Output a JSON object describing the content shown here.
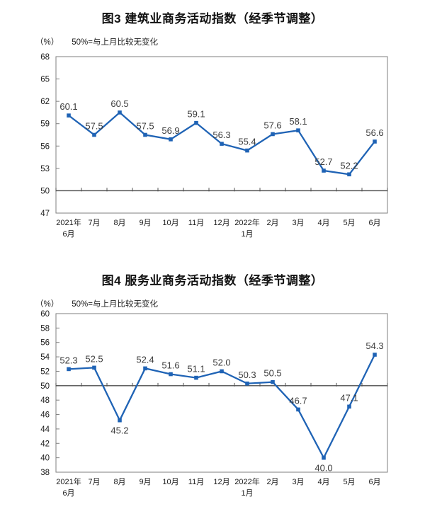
{
  "chart_data": [
    {
      "type": "line",
      "title": "图3 建筑业商务活动指数（经季节调整）",
      "unit_label": "（%）",
      "subtitle": "50%=与上月比较无变化",
      "categories": [
        [
          "2021年",
          "6月"
        ],
        [
          "7月"
        ],
        [
          "8月"
        ],
        [
          "9月"
        ],
        [
          "10月"
        ],
        [
          "11月"
        ],
        [
          "12月"
        ],
        [
          "2022年",
          "1月"
        ],
        [
          "2月"
        ],
        [
          "3月"
        ],
        [
          "4月"
        ],
        [
          "5月"
        ],
        [
          "6月"
        ]
      ],
      "values": [
        60.1,
        57.5,
        60.5,
        57.5,
        56.9,
        59.1,
        56.3,
        55.4,
        57.6,
        58.1,
        52.7,
        52.2,
        56.6
      ],
      "ylim": [
        47,
        68
      ],
      "ytick_step": 3,
      "reference_line": 50,
      "label_below_indices": [],
      "legend": "none",
      "grid": "off",
      "line_color": "#1f63b5",
      "marker": "square",
      "label_color": "#3d3d3d",
      "axis_color": "#7f7f7f",
      "reference_line_color": "#4d4d4d",
      "tick_text_color": "#1a1a1a"
    },
    {
      "type": "line",
      "title": "图4 服务业商务活动指数（经季节调整）",
      "unit_label": "（%）",
      "subtitle": "50%=与上月比较无变化",
      "categories": [
        [
          "2021年",
          "6月"
        ],
        [
          "7月"
        ],
        [
          "8月"
        ],
        [
          "9月"
        ],
        [
          "10月"
        ],
        [
          "11月"
        ],
        [
          "12月"
        ],
        [
          "2022年",
          "1月"
        ],
        [
          "2月"
        ],
        [
          "3月"
        ],
        [
          "4月"
        ],
        [
          "5月"
        ],
        [
          "6月"
        ]
      ],
      "values": [
        52.3,
        52.5,
        45.2,
        52.4,
        51.6,
        51.1,
        52.0,
        50.3,
        50.5,
        46.7,
        40.0,
        47.1,
        54.3
      ],
      "ylim": [
        38,
        60
      ],
      "ytick_step": 2,
      "reference_line": 50,
      "label_below_indices": [
        2,
        10
      ],
      "legend": "none",
      "grid": "off",
      "line_color": "#1f63b5",
      "marker": "square",
      "label_color": "#3d3d3d",
      "axis_color": "#7f7f7f",
      "reference_line_color": "#4d4d4d",
      "tick_text_color": "#1a1a1a"
    }
  ]
}
